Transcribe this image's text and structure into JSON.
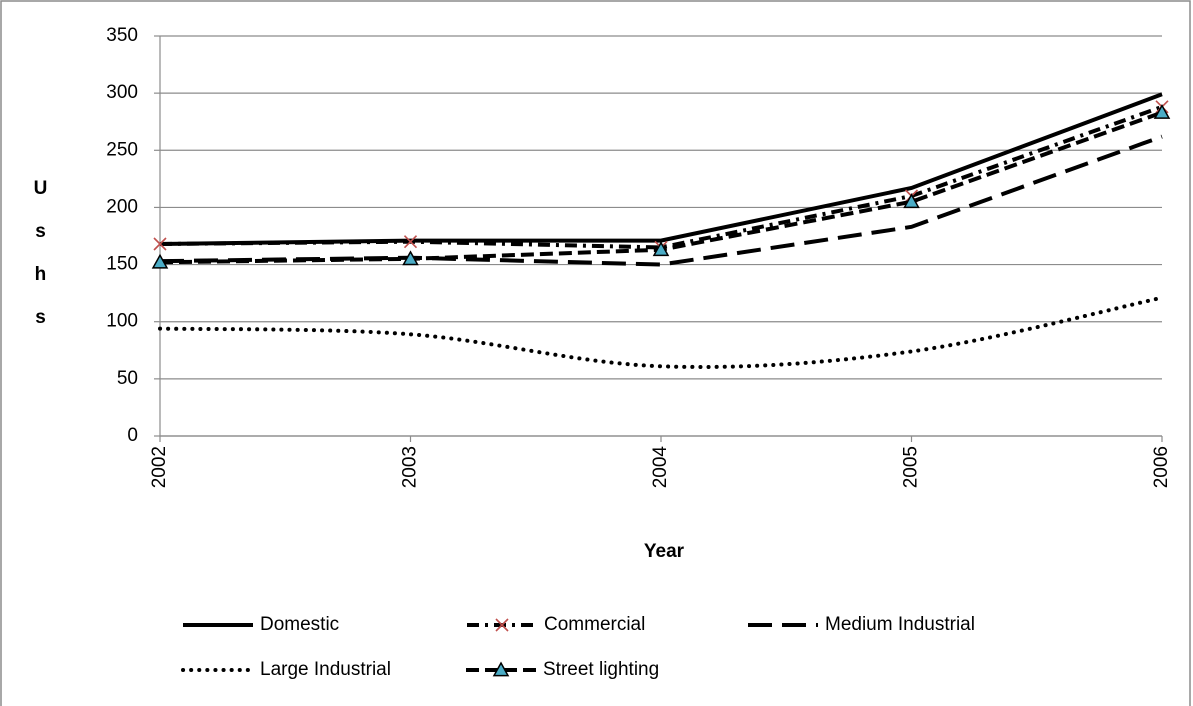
{
  "chart_data": {
    "type": "line",
    "categories": [
      "2002",
      "2003",
      "2004",
      "2005",
      "2006"
    ],
    "x_label": "Year",
    "y_label": "Ushs",
    "ylim": [
      0,
      350
    ],
    "yticks": [
      0,
      50,
      100,
      150,
      200,
      250,
      300,
      350
    ],
    "grid": true,
    "series": [
      {
        "name": "Domestic",
        "color": "#000000",
        "dash": "solid",
        "values": [
          168,
          171,
          171,
          217,
          299
        ]
      },
      {
        "name": "Commercial",
        "color": "#000000",
        "dash": "dash-dot",
        "marker": "x",
        "marker_color": "#c0504d",
        "values": [
          168,
          170,
          165,
          210,
          288
        ]
      },
      {
        "name": "Medium Industrial",
        "color": "#000000",
        "dash": "long-dash",
        "values": [
          153,
          156,
          150,
          183,
          262
        ]
      },
      {
        "name": "Large Industrial",
        "color": "#000000",
        "dash": "dot",
        "smooth": true,
        "values": [
          94,
          89,
          61,
          74,
          121
        ]
      },
      {
        "name": "Street lighting",
        "color": "#000000",
        "dash": "dash",
        "marker": "triangle",
        "marker_color": "#4bacc6",
        "values": [
          152,
          155,
          163,
          205,
          283
        ]
      }
    ]
  }
}
